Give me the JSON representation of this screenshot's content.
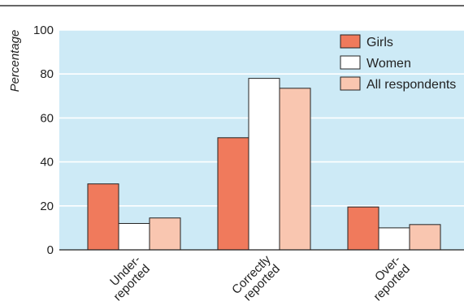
{
  "chart_data": {
    "type": "bar",
    "ylabel": "Percentage",
    "ylim": [
      0,
      100
    ],
    "yticks": [
      0,
      20,
      40,
      60,
      80,
      100
    ],
    "grid": true,
    "legend_position": "top-right",
    "categories": [
      [
        "Under-",
        "reported"
      ],
      [
        "Correctly",
        "reported"
      ],
      [
        "Over-",
        "reported"
      ]
    ],
    "series": [
      {
        "name": "Girls",
        "color": "#f07a5c",
        "values": [
          30,
          51,
          19.5
        ]
      },
      {
        "name": "Women",
        "color": "#ffffff",
        "values": [
          12,
          78,
          10
        ]
      },
      {
        "name": "All respondents",
        "color": "#f9c6b0",
        "values": [
          14.5,
          73.5,
          11.5
        ]
      }
    ],
    "colors": {
      "plot_background": "#cdeaf6",
      "gridline": "#ffffff",
      "bar_stroke": "#222222",
      "top_rule": "#333333"
    }
  }
}
